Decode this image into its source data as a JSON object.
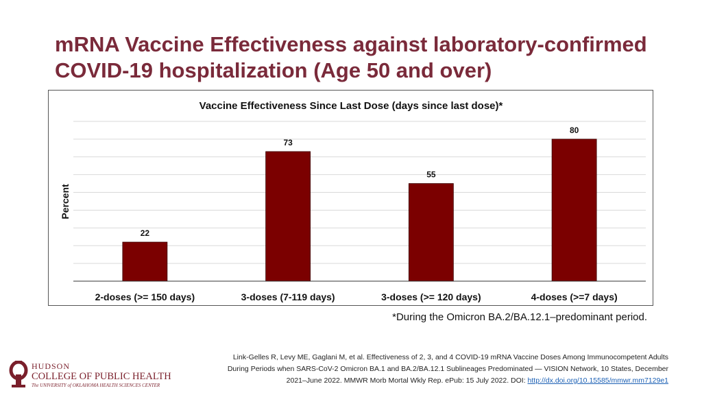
{
  "slide": {
    "title_line1": "mRNA Vaccine Effectiveness against laboratory-confirmed",
    "title_line2": "COVID-19 hospitalization (Age 50 and over)",
    "footnote": "*During the Omicron BA.2/BA.12.1–predominant period.",
    "citation_line1": "Link-Gelles R, Levy ME, Gaglani M, et al. Effectiveness of 2, 3, and 4 COVID-19 mRNA Vaccine Doses Among Immunocompetent Adults",
    "citation_line2": "During Periods when SARS-CoV-2 Omicron BA.1 and BA.2/BA.12.1 Sublineages Predominated — VISION Network, 10 States, December",
    "citation_line3_text": "2021–June 2022. MMWR Morb Mortal Wkly Rep. ePub: 15 July 2022. DOI: ",
    "citation_link": "http://dx.doi.org/10.15585/mmwr.mm7129e1"
  },
  "logo": {
    "line1": "HUDSON",
    "line2": "COLLEGE OF PUBLIC HEALTH",
    "line3": "The UNIVERSITY of OKLAHOMA HEALTH SCIENCES CENTER",
    "color": "#7a1f2b"
  },
  "chart_data": {
    "type": "bar",
    "title": "Vaccine Effectiveness Since Last Dose (days since last dose)*",
    "xlabel": "",
    "ylabel": "Percent",
    "categories": [
      "2-doses (>= 150 days)",
      "3-doses (7-119 days)",
      "3-doses (>= 120 days)",
      "4-doses (>=7 days)"
    ],
    "values": [
      22,
      73,
      55,
      80
    ],
    "data_labels": [
      "22",
      "73",
      "55",
      "80"
    ],
    "ylim": [
      0,
      90
    ],
    "grid_step": 10,
    "grid": true,
    "bar_color": "#7b0000",
    "grid_color": "#d9d9d9"
  }
}
